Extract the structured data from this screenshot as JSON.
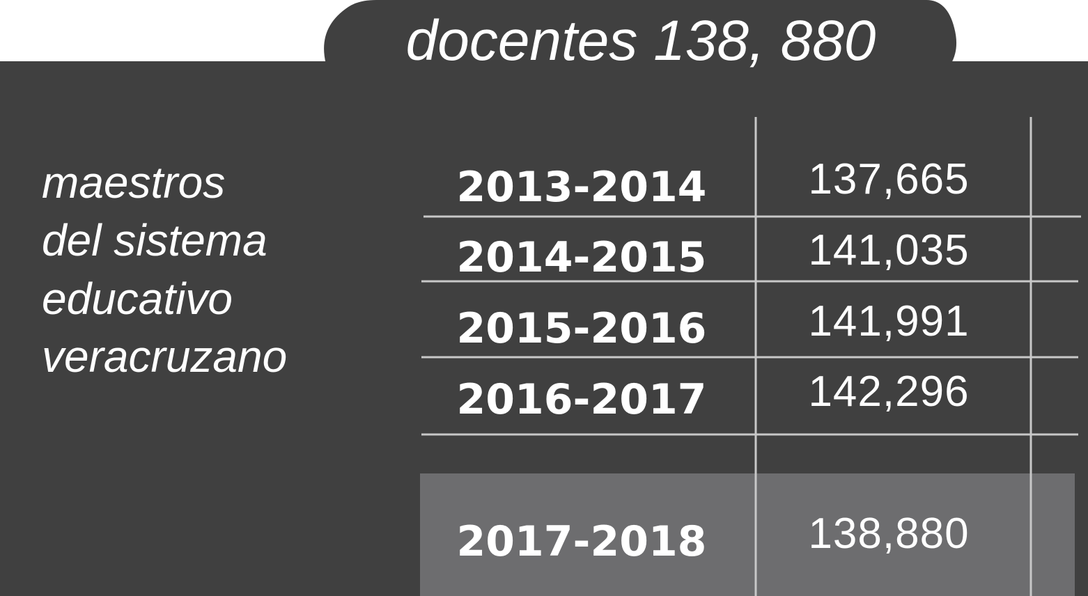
{
  "header": {
    "title": "docentes 138, 880"
  },
  "label": {
    "lines": [
      "maestros",
      "del sistema",
      "educativo",
      "veracruzano"
    ]
  },
  "table": {
    "rows": [
      [
        "2013-2014",
        "137,665"
      ],
      [
        "2014-2015",
        "141,035"
      ],
      [
        "2015-2016",
        "141,991"
      ],
      [
        "2016-2017",
        "142,296"
      ]
    ],
    "highlight": [
      "2017-2018",
      "138,880"
    ]
  }
}
